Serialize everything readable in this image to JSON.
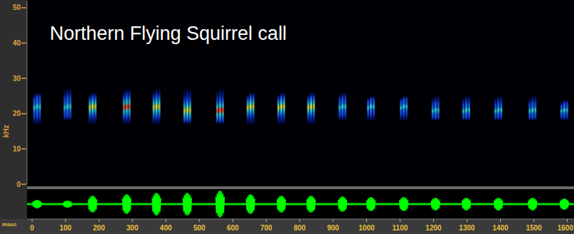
{
  "chart_data": {
    "type": "spectrogram",
    "title": "Northern Flying Squirrel call",
    "y_label": "kHz",
    "x_label": "msec",
    "xlim": [
      -15,
      1620
    ],
    "xticks": [
      0,
      100,
      200,
      300,
      400,
      500,
      600,
      700,
      800,
      900,
      1000,
      1100,
      1200,
      1300,
      1400,
      1500,
      1600
    ],
    "ylim": [
      0,
      52
    ],
    "yticks": [
      0,
      10,
      20,
      30,
      40,
      50
    ],
    "pulses": {
      "time": [
        15,
        106,
        181,
        283,
        372,
        464,
        562,
        653,
        745,
        834,
        928,
        1013,
        1111,
        1206,
        1298,
        1394,
        1496,
        1591
      ],
      "duration": [
        25,
        25,
        25,
        25,
        25,
        25,
        25,
        25,
        25,
        25,
        25,
        25,
        25,
        25,
        25,
        25,
        25,
        25
      ],
      "low": [
        17,
        18,
        17,
        17,
        17,
        17,
        17,
        17,
        17,
        17,
        18,
        18,
        18,
        18,
        18,
        18,
        18,
        18
      ],
      "high": [
        26,
        27,
        26,
        27,
        27,
        27,
        27,
        26,
        26,
        26,
        26,
        25,
        25,
        25,
        25,
        25,
        25,
        24
      ],
      "peak": [
        22,
        22,
        22,
        22,
        22,
        21,
        21,
        22,
        22,
        22,
        22,
        22,
        22,
        21,
        21,
        21,
        21,
        21
      ],
      "intensity": [
        0.4,
        0.3,
        0.6,
        0.8,
        0.6,
        0.6,
        0.85,
        0.7,
        0.65,
        0.6,
        0.5,
        0.5,
        0.45,
        0.45,
        0.45,
        0.4,
        0.4,
        0.35
      ],
      "amplitude": [
        0.3,
        0.25,
        0.6,
        0.7,
        0.8,
        0.8,
        0.95,
        0.7,
        0.6,
        0.6,
        0.55,
        0.5,
        0.5,
        0.45,
        0.45,
        0.45,
        0.45,
        0.4
      ]
    },
    "intensity_lim": [
      0,
      1
    ],
    "amplitude_lim": [
      0,
      1
    ]
  }
}
